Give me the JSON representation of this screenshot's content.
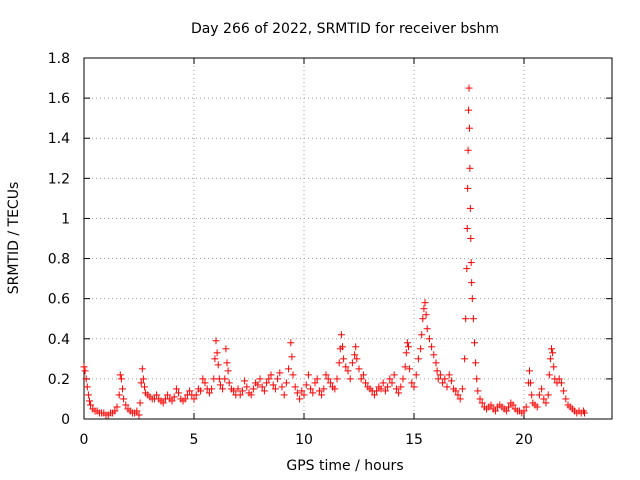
{
  "chart_data": {
    "type": "scatter",
    "title": "Day 266 of 2022, SRMTID for receiver bshm",
    "xlabel": "GPS time / hours",
    "ylabel": "SRMTID / TECUs",
    "xlim": [
      0,
      24
    ],
    "ylim": [
      0,
      1.8
    ],
    "x_ticks": [
      0,
      5,
      10,
      15,
      20
    ],
    "y_ticks": [
      0,
      0.2,
      0.4,
      0.6,
      0.8,
      1,
      1.2,
      1.4,
      1.6,
      1.8
    ],
    "x_tick_labels": [
      "0",
      "5",
      "10",
      "15",
      "20"
    ],
    "y_tick_labels": [
      "0",
      "0.2",
      "0.4",
      "0.6",
      "0.8",
      "1",
      "1.2",
      "1.4",
      "1.6",
      "1.8"
    ],
    "grid": true,
    "marker": "+",
    "color": "#ff0000",
    "series": [
      {
        "name": "SRMTID",
        "points": [
          [
            0.0,
            0.26
          ],
          [
            0.05,
            0.24
          ],
          [
            0.1,
            0.2
          ],
          [
            0.15,
            0.16
          ],
          [
            0.2,
            0.12
          ],
          [
            0.25,
            0.09
          ],
          [
            0.3,
            0.07
          ],
          [
            0.4,
            0.05
          ],
          [
            0.5,
            0.04
          ],
          [
            0.6,
            0.04
          ],
          [
            0.7,
            0.03
          ],
          [
            0.8,
            0.03
          ],
          [
            0.9,
            0.03
          ],
          [
            1.0,
            0.02
          ],
          [
            1.1,
            0.02
          ],
          [
            1.2,
            0.03
          ],
          [
            1.3,
            0.03
          ],
          [
            1.4,
            0.04
          ],
          [
            1.5,
            0.06
          ],
          [
            1.6,
            0.12
          ],
          [
            1.65,
            0.22
          ],
          [
            1.7,
            0.2
          ],
          [
            1.75,
            0.15
          ],
          [
            1.8,
            0.1
          ],
          [
            1.9,
            0.07
          ],
          [
            2.0,
            0.05
          ],
          [
            2.1,
            0.04
          ],
          [
            2.2,
            0.03
          ],
          [
            2.3,
            0.03
          ],
          [
            2.4,
            0.04
          ],
          [
            2.5,
            0.02
          ],
          [
            2.55,
            0.08
          ],
          [
            2.6,
            0.18
          ],
          [
            2.65,
            0.25
          ],
          [
            2.7,
            0.2
          ],
          [
            2.75,
            0.16
          ],
          [
            2.8,
            0.13
          ],
          [
            2.9,
            0.12
          ],
          [
            3.0,
            0.11
          ],
          [
            3.1,
            0.1
          ],
          [
            3.2,
            0.1
          ],
          [
            3.3,
            0.12
          ],
          [
            3.4,
            0.1
          ],
          [
            3.5,
            0.09
          ],
          [
            3.6,
            0.08
          ],
          [
            3.7,
            0.1
          ],
          [
            3.8,
            0.12
          ],
          [
            3.9,
            0.1
          ],
          [
            4.0,
            0.09
          ],
          [
            4.1,
            0.11
          ],
          [
            4.2,
            0.15
          ],
          [
            4.3,
            0.13
          ],
          [
            4.4,
            0.1
          ],
          [
            4.5,
            0.09
          ],
          [
            4.6,
            0.1
          ],
          [
            4.7,
            0.12
          ],
          [
            4.8,
            0.14
          ],
          [
            4.9,
            0.12
          ],
          [
            5.0,
            0.1
          ],
          [
            5.1,
            0.12
          ],
          [
            5.2,
            0.15
          ],
          [
            5.3,
            0.14
          ],
          [
            5.4,
            0.2
          ],
          [
            5.5,
            0.18
          ],
          [
            5.6,
            0.15
          ],
          [
            5.7,
            0.13
          ],
          [
            5.8,
            0.15
          ],
          [
            5.9,
            0.2
          ],
          [
            5.95,
            0.3
          ],
          [
            6.0,
            0.39
          ],
          [
            6.05,
            0.33
          ],
          [
            6.1,
            0.27
          ],
          [
            6.15,
            0.2
          ],
          [
            6.2,
            0.17
          ],
          [
            6.3,
            0.15
          ],
          [
            6.4,
            0.2
          ],
          [
            6.45,
            0.35
          ],
          [
            6.5,
            0.28
          ],
          [
            6.55,
            0.24
          ],
          [
            6.6,
            0.18
          ],
          [
            6.7,
            0.15
          ],
          [
            6.8,
            0.14
          ],
          [
            6.9,
            0.12
          ],
          [
            7.0,
            0.15
          ],
          [
            7.1,
            0.12
          ],
          [
            7.2,
            0.14
          ],
          [
            7.3,
            0.19
          ],
          [
            7.4,
            0.16
          ],
          [
            7.5,
            0.13
          ],
          [
            7.6,
            0.12
          ],
          [
            7.7,
            0.15
          ],
          [
            7.8,
            0.18
          ],
          [
            7.9,
            0.17
          ],
          [
            8.0,
            0.2
          ],
          [
            8.1,
            0.16
          ],
          [
            8.2,
            0.14
          ],
          [
            8.3,
            0.18
          ],
          [
            8.4,
            0.2
          ],
          [
            8.5,
            0.22
          ],
          [
            8.6,
            0.17
          ],
          [
            8.7,
            0.15
          ],
          [
            8.8,
            0.2
          ],
          [
            8.9,
            0.23
          ],
          [
            9.0,
            0.16
          ],
          [
            9.1,
            0.12
          ],
          [
            9.2,
            0.18
          ],
          [
            9.3,
            0.25
          ],
          [
            9.4,
            0.38
          ],
          [
            9.45,
            0.31
          ],
          [
            9.5,
            0.22
          ],
          [
            9.6,
            0.16
          ],
          [
            9.7,
            0.13
          ],
          [
            9.8,
            0.1
          ],
          [
            9.9,
            0.14
          ],
          [
            10.0,
            0.12
          ],
          [
            10.1,
            0.17
          ],
          [
            10.2,
            0.22
          ],
          [
            10.3,
            0.15
          ],
          [
            10.4,
            0.13
          ],
          [
            10.5,
            0.18
          ],
          [
            10.6,
            0.2
          ],
          [
            10.7,
            0.14
          ],
          [
            10.8,
            0.12
          ],
          [
            10.9,
            0.15
          ],
          [
            11.0,
            0.22
          ],
          [
            11.1,
            0.2
          ],
          [
            11.2,
            0.18
          ],
          [
            11.3,
            0.16
          ],
          [
            11.4,
            0.15
          ],
          [
            11.5,
            0.2
          ],
          [
            11.6,
            0.28
          ],
          [
            11.65,
            0.35
          ],
          [
            11.7,
            0.42
          ],
          [
            11.75,
            0.36
          ],
          [
            11.8,
            0.3
          ],
          [
            11.9,
            0.26
          ],
          [
            12.0,
            0.24
          ],
          [
            12.1,
            0.2
          ],
          [
            12.2,
            0.28
          ],
          [
            12.3,
            0.32
          ],
          [
            12.35,
            0.36
          ],
          [
            12.4,
            0.3
          ],
          [
            12.5,
            0.25
          ],
          [
            12.6,
            0.2
          ],
          [
            12.7,
            0.22
          ],
          [
            12.8,
            0.18
          ],
          [
            12.9,
            0.16
          ],
          [
            13.0,
            0.15
          ],
          [
            13.1,
            0.14
          ],
          [
            13.2,
            0.12
          ],
          [
            13.3,
            0.14
          ],
          [
            13.4,
            0.16
          ],
          [
            13.5,
            0.15
          ],
          [
            13.6,
            0.18
          ],
          [
            13.7,
            0.14
          ],
          [
            13.8,
            0.16
          ],
          [
            13.9,
            0.2
          ],
          [
            14.0,
            0.18
          ],
          [
            14.1,
            0.22
          ],
          [
            14.2,
            0.15
          ],
          [
            14.3,
            0.13
          ],
          [
            14.4,
            0.16
          ],
          [
            14.5,
            0.2
          ],
          [
            14.6,
            0.26
          ],
          [
            14.65,
            0.33
          ],
          [
            14.7,
            0.38
          ],
          [
            14.75,
            0.36
          ],
          [
            14.8,
            0.25
          ],
          [
            14.9,
            0.18
          ],
          [
            15.0,
            0.16
          ],
          [
            15.1,
            0.22
          ],
          [
            15.2,
            0.3
          ],
          [
            15.3,
            0.35
          ],
          [
            15.35,
            0.42
          ],
          [
            15.4,
            0.5
          ],
          [
            15.45,
            0.55
          ],
          [
            15.5,
            0.58
          ],
          [
            15.55,
            0.52
          ],
          [
            15.6,
            0.45
          ],
          [
            15.7,
            0.4
          ],
          [
            15.8,
            0.36
          ],
          [
            15.9,
            0.32
          ],
          [
            16.0,
            0.28
          ],
          [
            16.05,
            0.24
          ],
          [
            16.1,
            0.2
          ],
          [
            16.2,
            0.22
          ],
          [
            16.3,
            0.18
          ],
          [
            16.4,
            0.2
          ],
          [
            16.5,
            0.16
          ],
          [
            16.6,
            0.22
          ],
          [
            16.7,
            0.19
          ],
          [
            16.8,
            0.15
          ],
          [
            16.9,
            0.14
          ],
          [
            17.0,
            0.12
          ],
          [
            17.1,
            0.1
          ],
          [
            17.2,
            0.15
          ],
          [
            17.3,
            0.3
          ],
          [
            17.35,
            0.5
          ],
          [
            17.4,
            0.75
          ],
          [
            17.42,
            0.95
          ],
          [
            17.44,
            1.15
          ],
          [
            17.46,
            1.34
          ],
          [
            17.48,
            1.54
          ],
          [
            17.5,
            1.65
          ],
          [
            17.52,
            1.45
          ],
          [
            17.54,
            1.25
          ],
          [
            17.56,
            1.05
          ],
          [
            17.58,
            0.9
          ],
          [
            17.6,
            0.78
          ],
          [
            17.62,
            0.68
          ],
          [
            17.65,
            0.6
          ],
          [
            17.7,
            0.5
          ],
          [
            17.75,
            0.38
          ],
          [
            17.8,
            0.28
          ],
          [
            17.85,
            0.2
          ],
          [
            17.9,
            0.14
          ],
          [
            18.0,
            0.1
          ],
          [
            18.1,
            0.08
          ],
          [
            18.2,
            0.06
          ],
          [
            18.3,
            0.05
          ],
          [
            18.4,
            0.06
          ],
          [
            18.5,
            0.07
          ],
          [
            18.6,
            0.05
          ],
          [
            18.7,
            0.04
          ],
          [
            18.8,
            0.06
          ],
          [
            18.9,
            0.07
          ],
          [
            19.0,
            0.06
          ],
          [
            19.1,
            0.05
          ],
          [
            19.2,
            0.04
          ],
          [
            19.3,
            0.06
          ],
          [
            19.4,
            0.08
          ],
          [
            19.5,
            0.07
          ],
          [
            19.6,
            0.05
          ],
          [
            19.7,
            0.04
          ],
          [
            19.8,
            0.04
          ],
          [
            19.9,
            0.03
          ],
          [
            20.0,
            0.04
          ],
          [
            20.1,
            0.06
          ],
          [
            20.2,
            0.18
          ],
          [
            20.25,
            0.24
          ],
          [
            20.3,
            0.18
          ],
          [
            20.35,
            0.12
          ],
          [
            20.4,
            0.08
          ],
          [
            20.5,
            0.07
          ],
          [
            20.6,
            0.06
          ],
          [
            20.7,
            0.12
          ],
          [
            20.8,
            0.15
          ],
          [
            20.9,
            0.1
          ],
          [
            21.0,
            0.08
          ],
          [
            21.1,
            0.12
          ],
          [
            21.15,
            0.22
          ],
          [
            21.2,
            0.3
          ],
          [
            21.25,
            0.35
          ],
          [
            21.3,
            0.33
          ],
          [
            21.35,
            0.26
          ],
          [
            21.4,
            0.2
          ],
          [
            21.5,
            0.18
          ],
          [
            21.6,
            0.2
          ],
          [
            21.7,
            0.18
          ],
          [
            21.8,
            0.14
          ],
          [
            21.9,
            0.1
          ],
          [
            22.0,
            0.07
          ],
          [
            22.1,
            0.06
          ],
          [
            22.2,
            0.05
          ],
          [
            22.3,
            0.04
          ],
          [
            22.4,
            0.03
          ],
          [
            22.5,
            0.04
          ],
          [
            22.6,
            0.03
          ],
          [
            22.7,
            0.04
          ],
          [
            22.75,
            0.03
          ]
        ]
      }
    ]
  }
}
